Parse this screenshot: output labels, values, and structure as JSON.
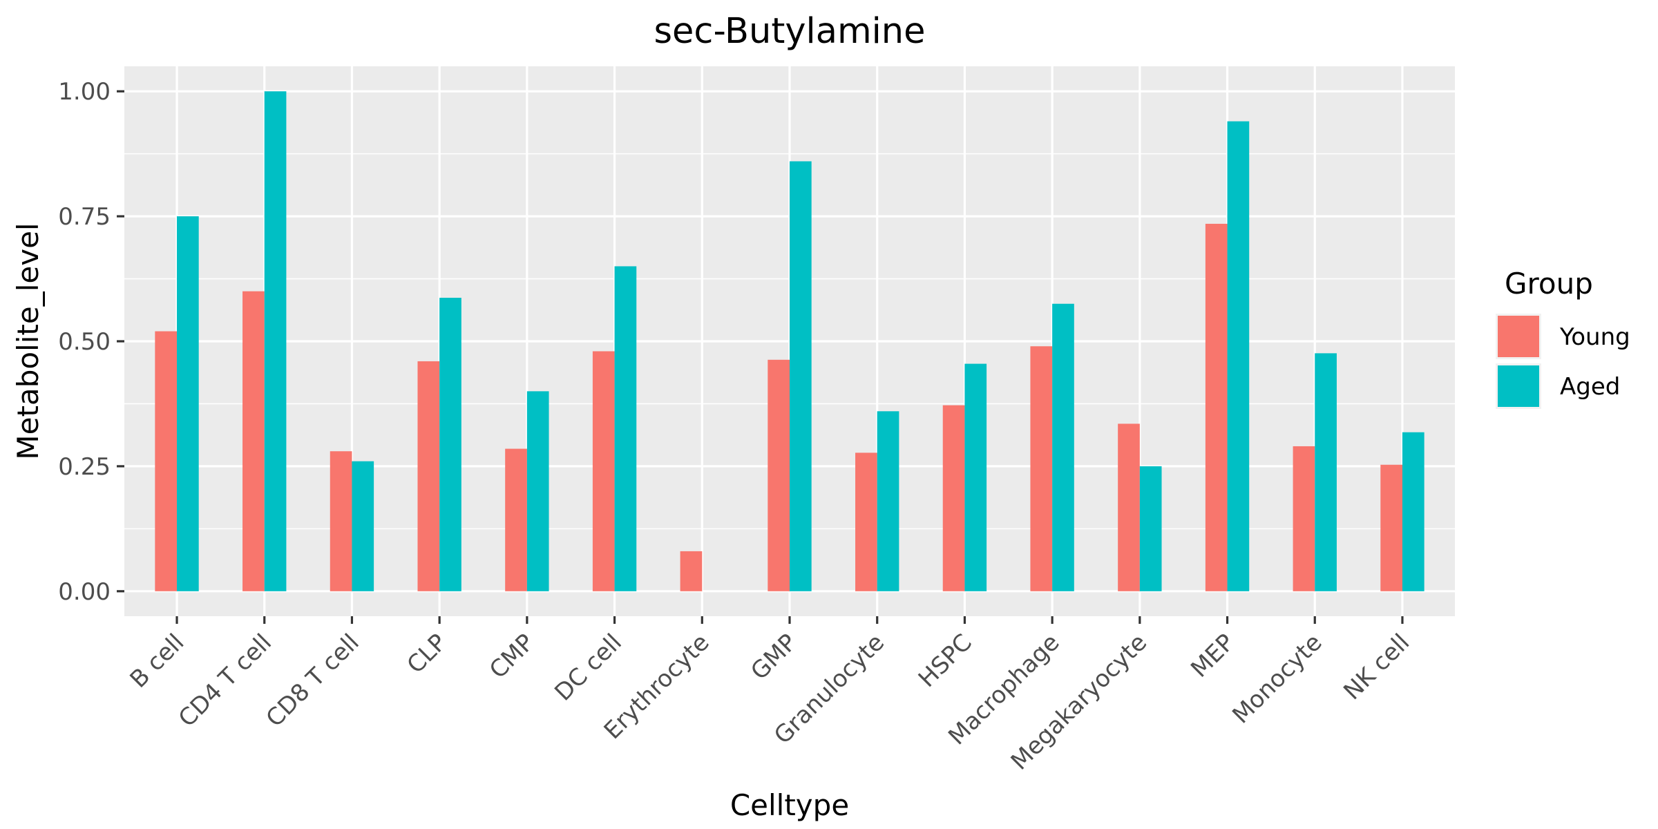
{
  "chart_data": {
    "type": "bar",
    "title": "sec-Butylamine",
    "xlabel": "Celltype",
    "ylabel": "Metabolite_level",
    "ylim": [
      -0.05,
      1.05
    ],
    "yticks": [
      0,
      0.25,
      0.5,
      0.75,
      1
    ],
    "ytick_labels": [
      "0.00",
      "0.25",
      "0.50",
      "0.75",
      "1.00"
    ],
    "grid": true,
    "legend": {
      "title": "Group",
      "position": "right"
    },
    "categories": [
      "B cell",
      "CD4 T cell",
      "CD8 T cell",
      "CLP",
      "CMP",
      "DC cell",
      "Erythrocyte",
      "GMP",
      "Granulocyte",
      "HSPC",
      "Macrophage",
      "Megakaryocyte",
      "MEP",
      "Monocyte",
      "NK cell"
    ],
    "series": [
      {
        "name": "Young",
        "color": "#F8766D",
        "values": [
          0.52,
          0.6,
          0.28,
          0.46,
          0.285,
          0.48,
          0.08,
          0.463,
          0.277,
          0.372,
          0.49,
          0.335,
          0.735,
          0.29,
          0.253
        ]
      },
      {
        "name": "Aged",
        "color": "#00BFC4",
        "values": [
          0.75,
          1.0,
          0.26,
          0.587,
          0.4,
          0.65,
          0.0,
          0.86,
          0.36,
          0.455,
          0.575,
          0.25,
          0.94,
          0.476,
          0.318
        ]
      }
    ]
  }
}
